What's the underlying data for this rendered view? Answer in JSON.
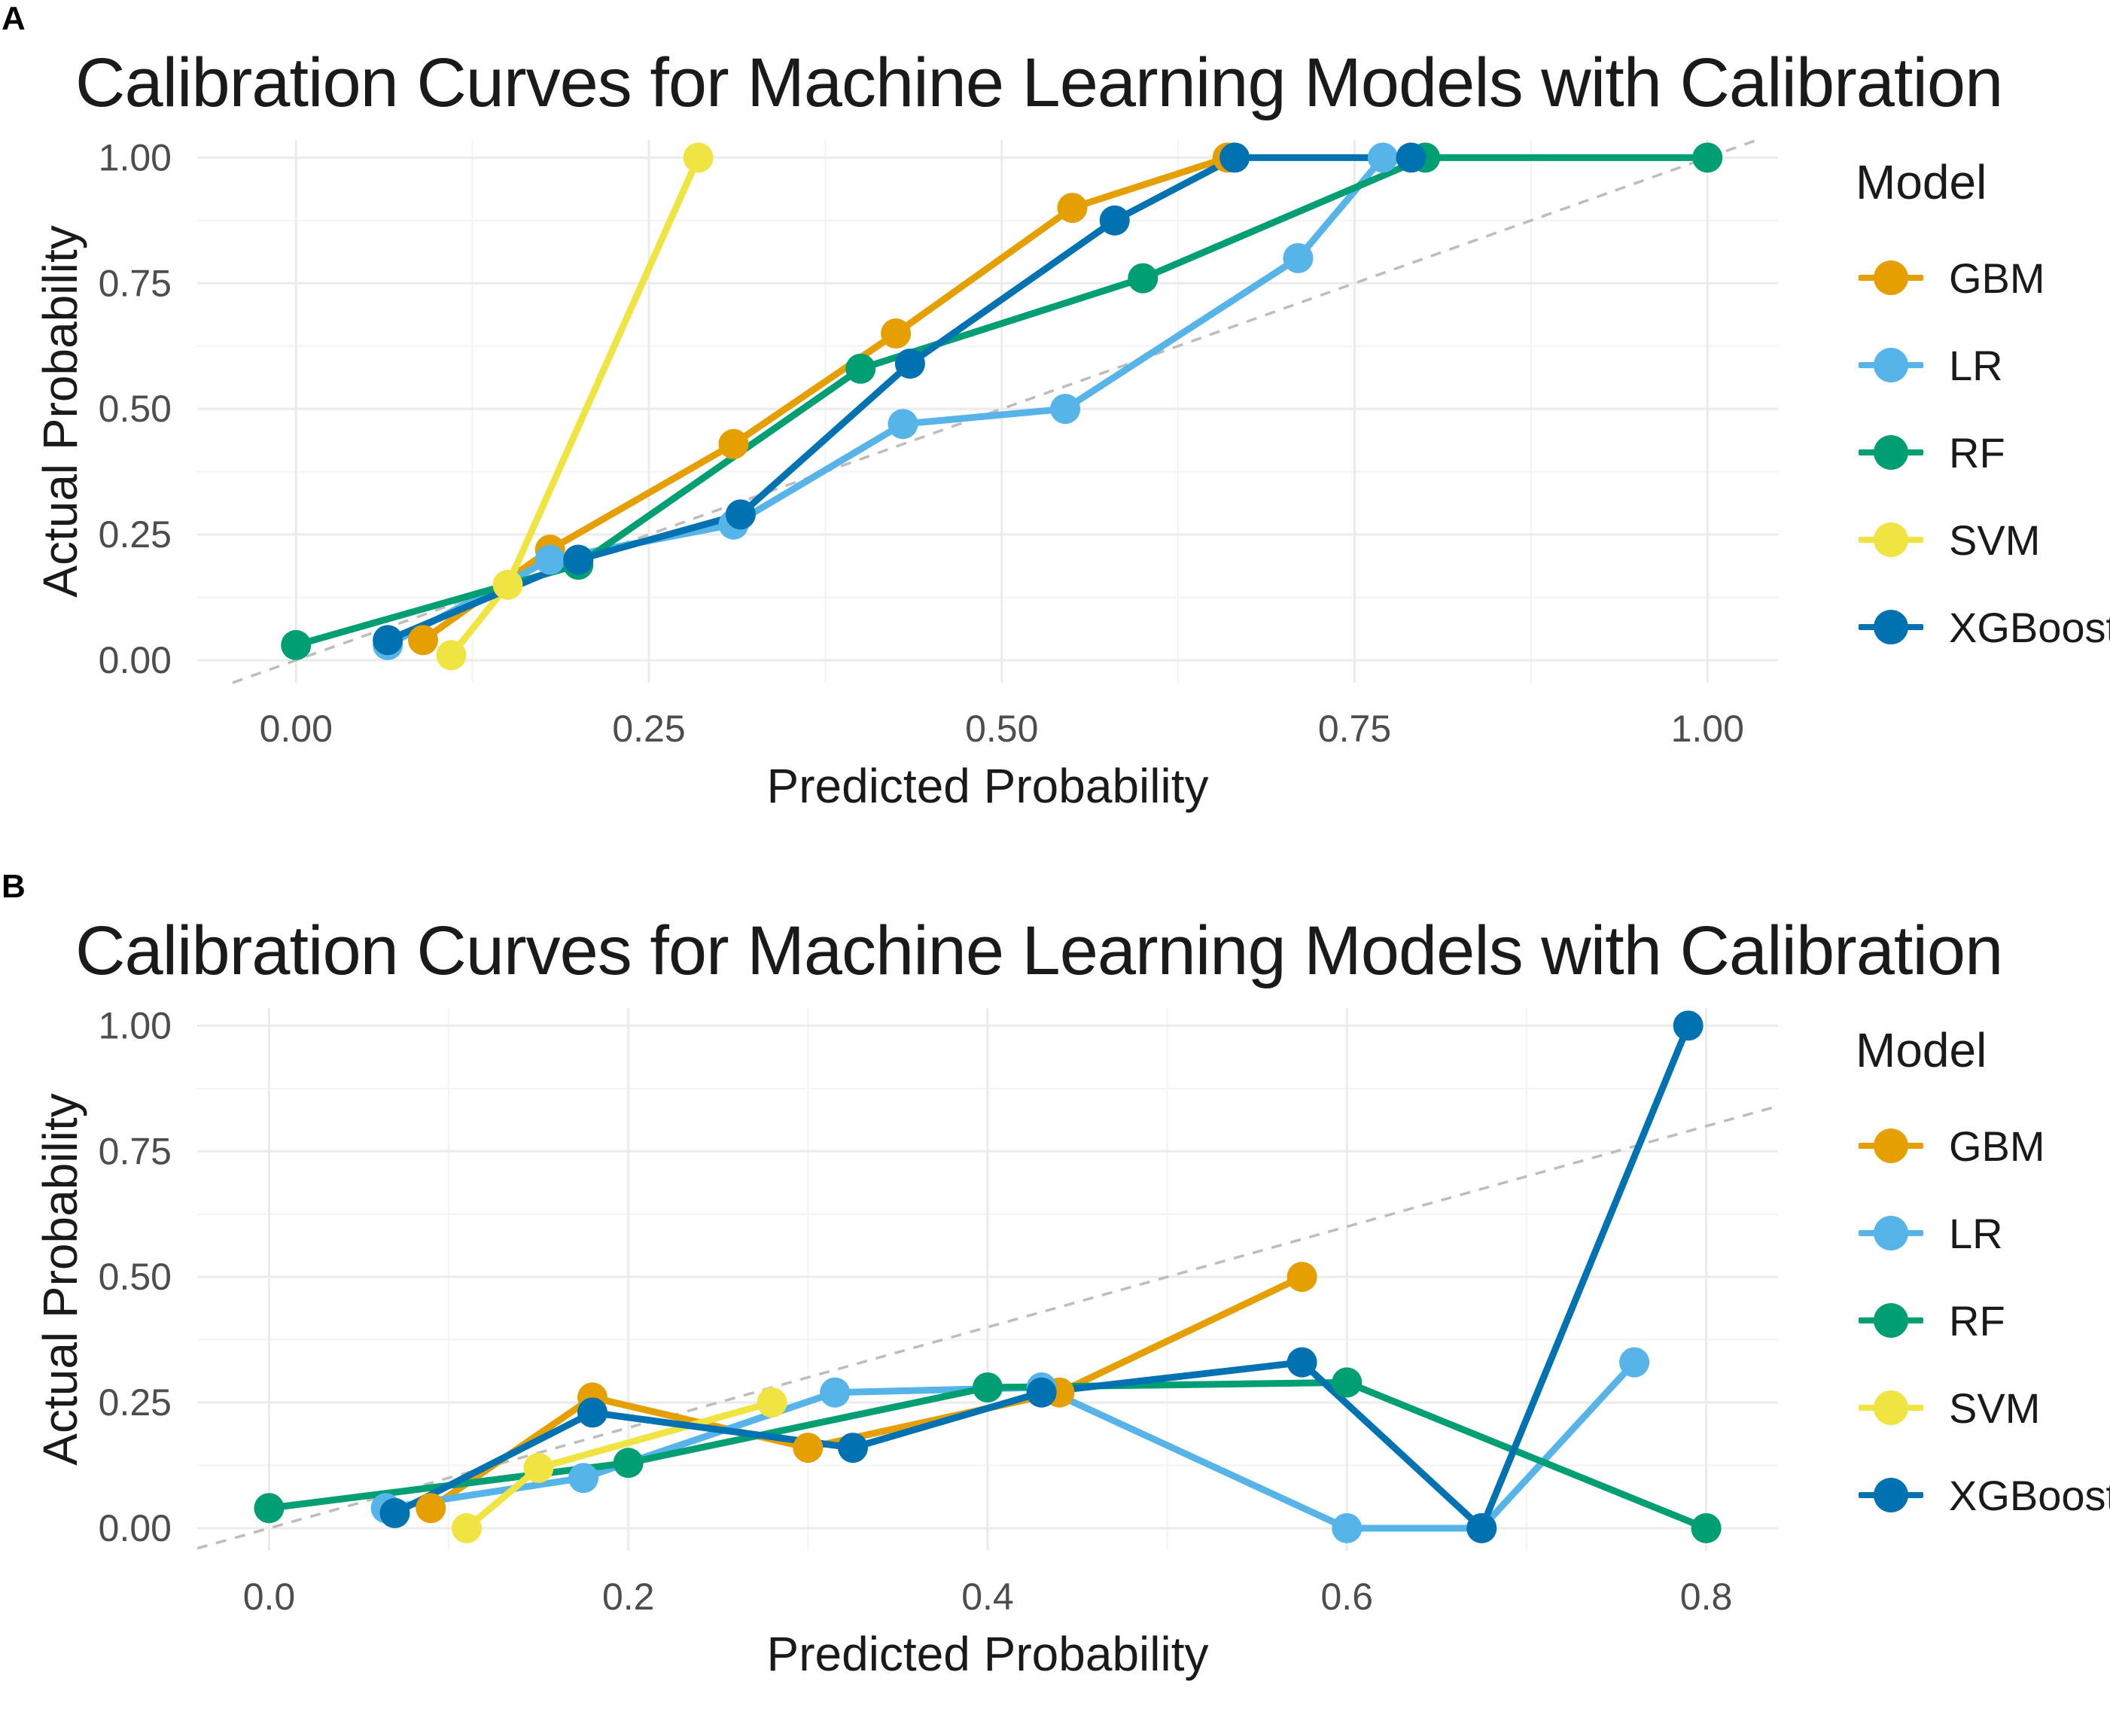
{
  "colors": {
    "GBM": "#E69F00",
    "LR": "#56B4E9",
    "RF": "#009E73",
    "SVM": "#F0E442",
    "XGBoost": "#0072B2",
    "reference": "#bdbdbd",
    "grid": "#ebebeb"
  },
  "legend": {
    "title": "Model",
    "items": [
      {
        "label": "GBM",
        "color": "#E69F00"
      },
      {
        "label": "LR",
        "color": "#56B4E9"
      },
      {
        "label": "RF",
        "color": "#009E73"
      },
      {
        "label": "SVM",
        "color": "#F0E442"
      },
      {
        "label": "XGBoost",
        "color": "#0072B2"
      }
    ]
  },
  "chart_data": [
    {
      "panel": "A",
      "type": "line",
      "title": "Calibration Curves for Machine Learning Models with Calibration",
      "xlabel": "Predicted Probability",
      "ylabel": "Actual Probability",
      "xlim": [
        -0.07,
        1.05
      ],
      "ylim": [
        -0.045,
        1.035
      ],
      "xticks": [
        0,
        0.25,
        0.5,
        0.75,
        1
      ],
      "xtick_labels": [
        "0.00",
        "0.25",
        "0.50",
        "0.75",
        "1.00"
      ],
      "yticks": [
        0,
        0.25,
        0.5,
        0.75,
        1
      ],
      "ytick_labels": [
        "0.00",
        "0.25",
        "0.50",
        "0.75",
        "1.00"
      ],
      "reference_line": "y = x",
      "series": [
        {
          "name": "GBM",
          "points": [
            [
              0.09,
              0.04
            ],
            [
              0.18,
              0.22
            ],
            [
              0.31,
              0.43
            ],
            [
              0.425,
              0.65
            ],
            [
              0.55,
              0.9
            ],
            [
              0.66,
              1.0
            ]
          ]
        },
        {
          "name": "LR",
          "points": [
            [
              0.065,
              0.03
            ],
            [
              0.18,
              0.2
            ],
            [
              0.31,
              0.27
            ],
            [
              0.43,
              0.47
            ],
            [
              0.545,
              0.5
            ],
            [
              0.71,
              0.8
            ],
            [
              0.77,
              1.0
            ]
          ]
        },
        {
          "name": "RF",
          "points": [
            [
              0.0,
              0.03
            ],
            [
              0.2,
              0.19
            ],
            [
              0.4,
              0.58
            ],
            [
              0.6,
              0.76
            ],
            [
              0.8,
              1.0
            ],
            [
              1.0,
              1.0
            ]
          ]
        },
        {
          "name": "SVM",
          "points": [
            [
              0.11,
              0.01
            ],
            [
              0.15,
              0.15
            ],
            [
              0.285,
              1.0
            ]
          ]
        },
        {
          "name": "XGBoost",
          "points": [
            [
              0.065,
              0.04
            ],
            [
              0.2,
              0.2
            ],
            [
              0.315,
              0.29
            ],
            [
              0.435,
              0.59
            ],
            [
              0.58,
              0.875
            ],
            [
              0.665,
              1.0
            ],
            [
              0.79,
              1.0
            ]
          ]
        }
      ]
    },
    {
      "panel": "B",
      "type": "line",
      "title": "Calibration Curves for Machine Learning Models with Calibration",
      "xlabel": "Predicted Probability",
      "ylabel": "Actual Probability",
      "xlim": [
        -0.04,
        0.84
      ],
      "ylim": [
        -0.045,
        1.035
      ],
      "xticks": [
        0,
        0.2,
        0.4,
        0.6,
        0.8
      ],
      "xtick_labels": [
        "0.0",
        "0.2",
        "0.4",
        "0.6",
        "0.8"
      ],
      "yticks": [
        0,
        0.25,
        0.5,
        0.75,
        1
      ],
      "ytick_labels": [
        "0.00",
        "0.25",
        "0.50",
        "0.75",
        "1.00"
      ],
      "reference_line": "y = x",
      "series": [
        {
          "name": "GBM",
          "points": [
            [
              0.09,
              0.04
            ],
            [
              0.18,
              0.26
            ],
            [
              0.3,
              0.16
            ],
            [
              0.44,
              0.27
            ],
            [
              0.575,
              0.5
            ]
          ]
        },
        {
          "name": "LR",
          "points": [
            [
              0.065,
              0.04
            ],
            [
              0.175,
              0.1
            ],
            [
              0.315,
              0.27
            ],
            [
              0.43,
              0.28
            ],
            [
              0.6,
              0.0
            ],
            [
              0.675,
              0.0
            ],
            [
              0.76,
              0.33
            ]
          ]
        },
        {
          "name": "RF",
          "points": [
            [
              0.0,
              0.04
            ],
            [
              0.2,
              0.13
            ],
            [
              0.4,
              0.28
            ],
            [
              0.6,
              0.29
            ],
            [
              0.8,
              0.0
            ]
          ]
        },
        {
          "name": "SVM",
          "points": [
            [
              0.11,
              0.0
            ],
            [
              0.15,
              0.12
            ],
            [
              0.28,
              0.25
            ]
          ]
        },
        {
          "name": "XGBoost",
          "points": [
            [
              0.07,
              0.03
            ],
            [
              0.18,
              0.23
            ],
            [
              0.325,
              0.16
            ],
            [
              0.43,
              0.27
            ],
            [
              0.575,
              0.33
            ],
            [
              0.675,
              0.0
            ],
            [
              0.79,
              1.0
            ]
          ]
        }
      ]
    }
  ]
}
